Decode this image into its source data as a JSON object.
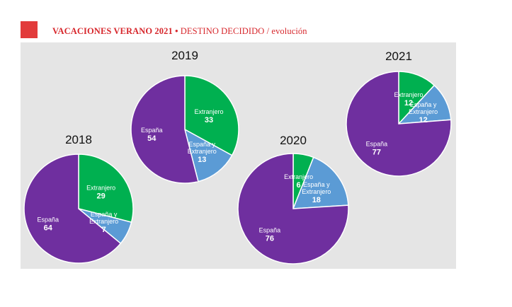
{
  "header": {
    "title_strong": "VACACIONES VERANO 2021",
    "bullet": "•",
    "title_light": "DESTINO DECIDIDO",
    "subtitle": "/ evolución"
  },
  "colors": {
    "Espana": "#6f2f9f",
    "Extranjero": "#00b050",
    "Espana y Extranjero": "#5b9bd5"
  },
  "chart_data": [
    {
      "type": "pie",
      "title": "2018",
      "slices": [
        {
          "label": "Extranjero",
          "value": 29
        },
        {
          "label": "España y Extranjero",
          "value": 7
        },
        {
          "label": "España",
          "value": 64
        }
      ]
    },
    {
      "type": "pie",
      "title": "2019",
      "slices": [
        {
          "label": "Extranjero",
          "value": 33
        },
        {
          "label": "España y Extranjero",
          "value": 13
        },
        {
          "label": "España",
          "value": 54
        }
      ]
    },
    {
      "type": "pie",
      "title": "2020",
      "slices": [
        {
          "label": "Extranjero",
          "value": 6
        },
        {
          "label": "España y Extranjero",
          "value": 18
        },
        {
          "label": "España",
          "value": 76
        }
      ]
    },
    {
      "type": "pie",
      "title": "2021",
      "slices": [
        {
          "label": "Extranjero",
          "value": 12
        },
        {
          "label": "España y Extranjero",
          "value": 12
        },
        {
          "label": "España",
          "value": 77
        }
      ]
    }
  ]
}
